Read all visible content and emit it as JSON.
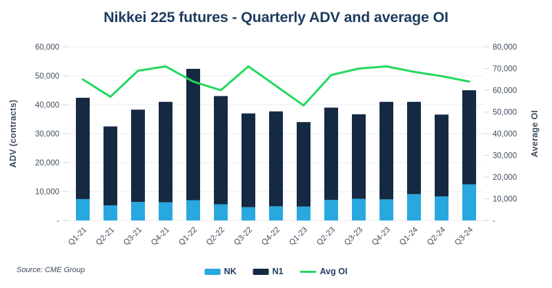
{
  "page": {
    "title": "Nikkei 225 futures - Quarterly ADV and average OI",
    "source": "Source: CME Group"
  },
  "colors": {
    "nk": "#29a8e0",
    "n1": "#152a42",
    "avg_oi": "#21d95c",
    "title": "#1d3c5f",
    "axis_text": "#3f4c5c",
    "gridline": "#e9ebee",
    "tick_mark": "#d7dbe0"
  },
  "legend": {
    "nk_label": "NK",
    "n1_label": "N1",
    "avg_oi_label": "Avg OI"
  },
  "chart_data": {
    "type": "bar",
    "subtype": "stacked-bars-with-line",
    "title": "Nikkei 225 futures - Quarterly ADV and average OI",
    "categories": [
      "Q1-21",
      "Q2-21",
      "Q3-21",
      "Q4-21",
      "Q1-22",
      "Q2-22",
      "Q3-22",
      "Q4-22",
      "Q1-23",
      "Q2-23",
      "Q3-23",
      "Q4-23",
      "Q1-24",
      "Q2-24",
      "Q3-24"
    ],
    "series": [
      {
        "name": "NK",
        "type": "bar",
        "axis": "left",
        "values": [
          7400,
          5200,
          6400,
          6300,
          7000,
          5600,
          4600,
          4900,
          4800,
          7100,
          7500,
          7300,
          9100,
          8300,
          12500
        ]
      },
      {
        "name": "N1",
        "type": "bar",
        "axis": "left",
        "values": [
          35000,
          27300,
          31900,
          34700,
          45400,
          37400,
          32400,
          32800,
          29200,
          31900,
          29200,
          33700,
          31900,
          28300,
          32500
        ]
      },
      {
        "name": "Avg OI",
        "type": "line",
        "axis": "right",
        "values": [
          65000,
          57000,
          69000,
          71000,
          64000,
          60000,
          71000,
          62000,
          53000,
          67000,
          70000,
          71000,
          68500,
          66500,
          64000
        ]
      }
    ],
    "left_axis": {
      "label": "ADV (contracts)",
      "min": 0,
      "max": 60000,
      "step": 10000,
      "ticks": [
        "-",
        "10,000",
        "20,000",
        "30,000",
        "40,000",
        "50,000",
        "60,000"
      ]
    },
    "right_axis": {
      "label": "Average OI",
      "min": 0,
      "max": 80000,
      "step": 10000,
      "ticks": [
        "-",
        "10,000",
        "20,000",
        "30,000",
        "40,000",
        "50,000",
        "60,000",
        "70,000",
        "80,000"
      ]
    },
    "grid": "horizontal",
    "legend_position": "bottom-center"
  }
}
